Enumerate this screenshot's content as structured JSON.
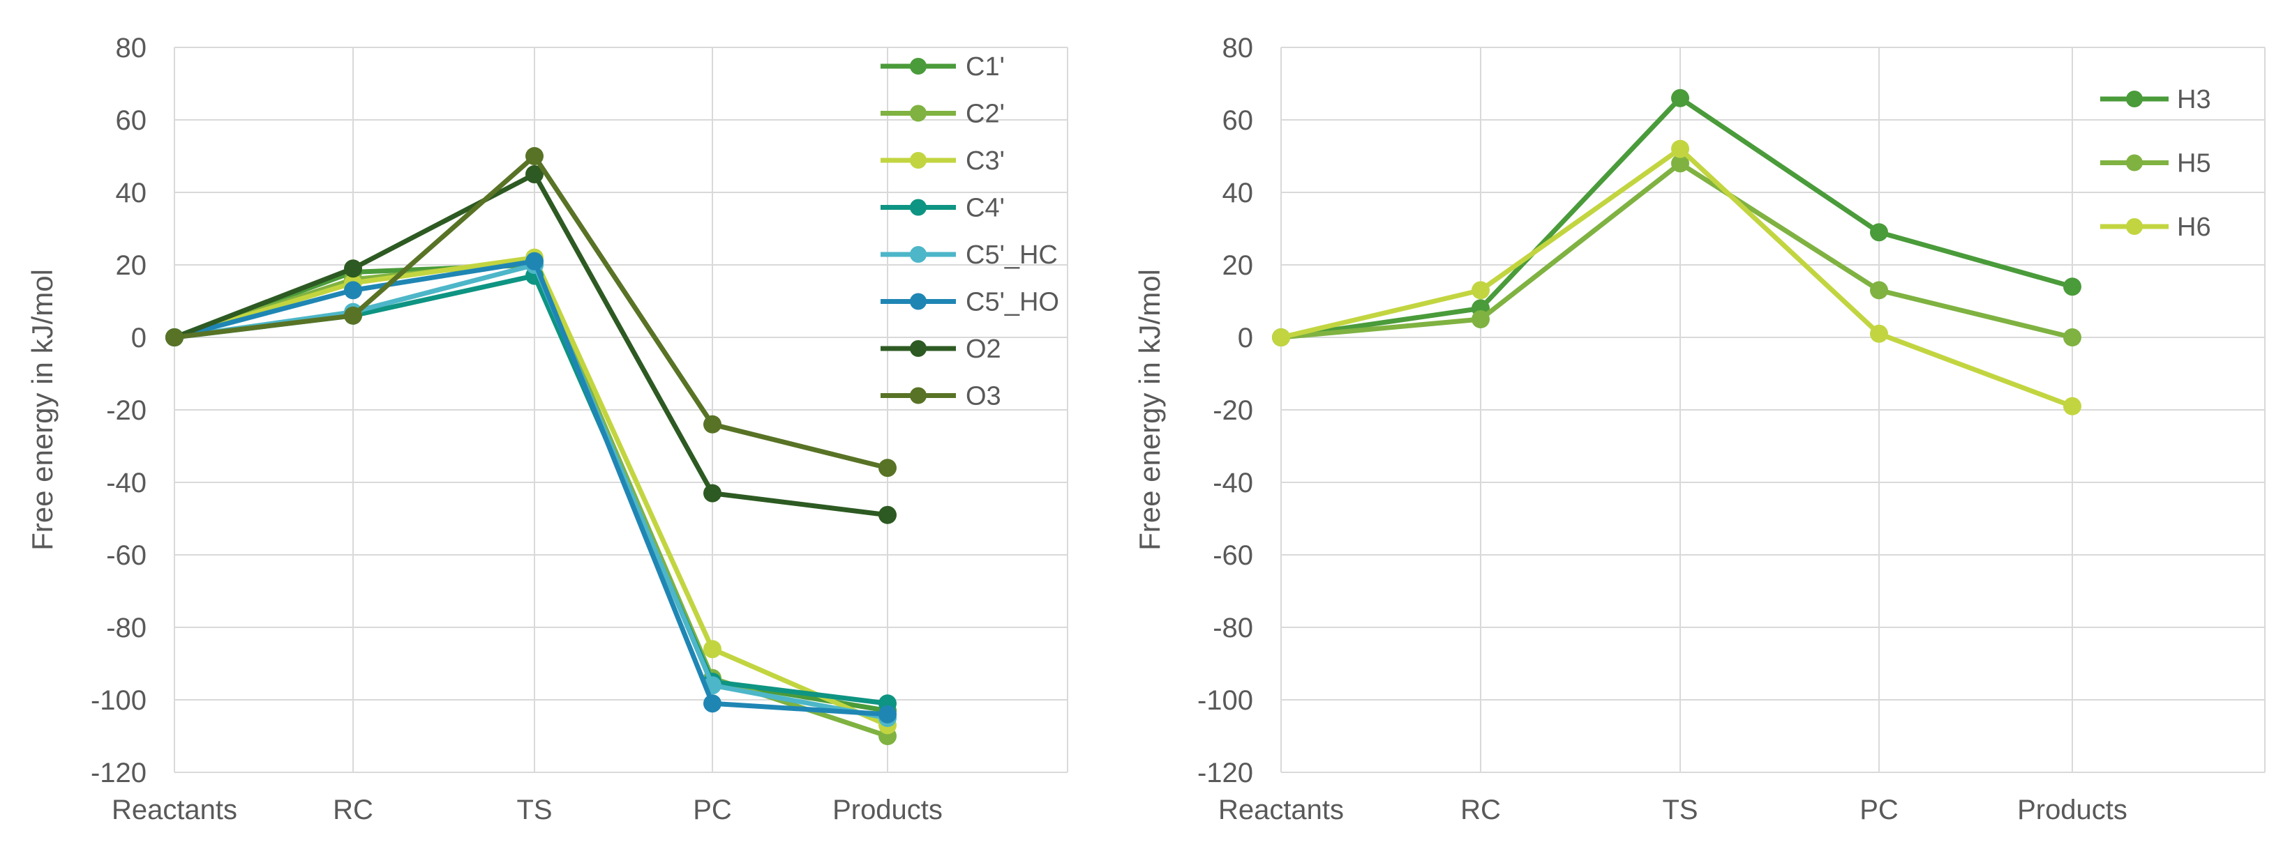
{
  "chart_data": [
    {
      "type": "line",
      "categories": [
        "Reactants",
        "RC",
        "TS",
        "PC",
        "Products"
      ],
      "ylabel": "Free energy in kJ/mol",
      "ylim": [
        -120,
        80
      ],
      "yticks": [
        80,
        60,
        40,
        20,
        0,
        -20,
        -40,
        -60,
        -80,
        -100,
        -120
      ],
      "grid": true,
      "legend": "top-right",
      "series": [
        {
          "name": "C1'",
          "color": "#4a9b3a",
          "values": [
            0,
            18,
            20,
            -95,
            -103
          ]
        },
        {
          "name": "C2'",
          "color": "#7fb241",
          "values": [
            0,
            16,
            21,
            -94,
            -110
          ]
        },
        {
          "name": "C3'",
          "color": "#c2d540",
          "values": [
            0,
            15,
            22,
            -86,
            -107
          ]
        },
        {
          "name": "C4'",
          "color": "#0e9482",
          "values": [
            0,
            6,
            17,
            -95,
            -101
          ]
        },
        {
          "name": "C5'_HC",
          "color": "#4db6c8",
          "values": [
            0,
            7,
            20,
            -96,
            -105
          ]
        },
        {
          "name": "C5'_HO",
          "color": "#1f86b4",
          "values": [
            0,
            13,
            21,
            -101,
            -104
          ]
        },
        {
          "name": "O2",
          "color": "#2d5a22",
          "values": [
            0,
            19,
            45,
            -43,
            -49
          ]
        },
        {
          "name": "O3",
          "color": "#587325",
          "values": [
            0,
            6,
            50,
            -24,
            -36
          ]
        }
      ]
    },
    {
      "type": "line",
      "categories": [
        "Reactants",
        "RC",
        "TS",
        "PC",
        "Products"
      ],
      "ylabel": "Free energy in kJ/mol",
      "ylim": [
        -120,
        80
      ],
      "yticks": [
        80,
        60,
        40,
        20,
        0,
        -20,
        -40,
        -60,
        -80,
        -100,
        -120
      ],
      "grid": true,
      "legend": "top-right",
      "series": [
        {
          "name": "H3",
          "color": "#4a9b3a",
          "values": [
            0,
            8,
            66,
            29,
            14
          ]
        },
        {
          "name": "H5",
          "color": "#7fb241",
          "values": [
            0,
            5,
            48,
            13,
            0
          ]
        },
        {
          "name": "H6",
          "color": "#c2d540",
          "values": [
            0,
            13,
            52,
            1,
            -19
          ]
        }
      ]
    }
  ]
}
